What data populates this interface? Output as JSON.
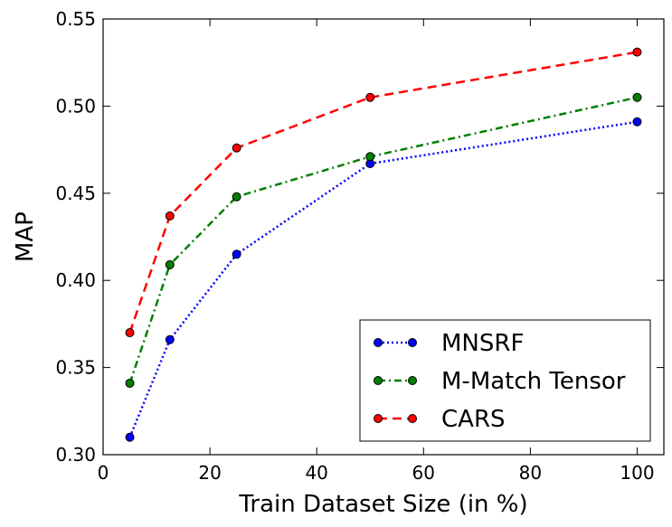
{
  "chart_data": {
    "type": "line",
    "title": "",
    "xlabel": "Train Dataset Size (in %)",
    "ylabel": "MAP",
    "xlim": [
      0,
      105
    ],
    "ylim": [
      0.3,
      0.55
    ],
    "xticks": [
      0,
      20,
      40,
      60,
      80,
      100
    ],
    "xtick_labels": [
      "0",
      "20",
      "40",
      "60",
      "80",
      "100"
    ],
    "yticks": [
      0.3,
      0.35,
      0.4,
      0.45,
      0.5,
      0.55
    ],
    "ytick_labels": [
      "0.30",
      "0.35",
      "0.40",
      "0.45",
      "0.50",
      "0.55"
    ],
    "grid": false,
    "legend_position": "lower-right",
    "x": [
      5,
      12.5,
      25,
      50,
      100
    ],
    "series": [
      {
        "name": "MNSRF",
        "key": "mnsrf",
        "color": "#0000ff",
        "dash": "dotted",
        "values": [
          0.31,
          0.366,
          0.415,
          0.467,
          0.491
        ]
      },
      {
        "name": "M-Match Tensor",
        "key": "m-match-tensor",
        "color": "#007f00",
        "dash": "dashdot",
        "values": [
          0.341,
          0.409,
          0.448,
          0.471,
          0.505
        ]
      },
      {
        "name": "CARS",
        "key": "cars",
        "color": "#ff0000",
        "dash": "dashed",
        "values": [
          0.37,
          0.437,
          0.476,
          0.505,
          0.531
        ]
      }
    ]
  }
}
